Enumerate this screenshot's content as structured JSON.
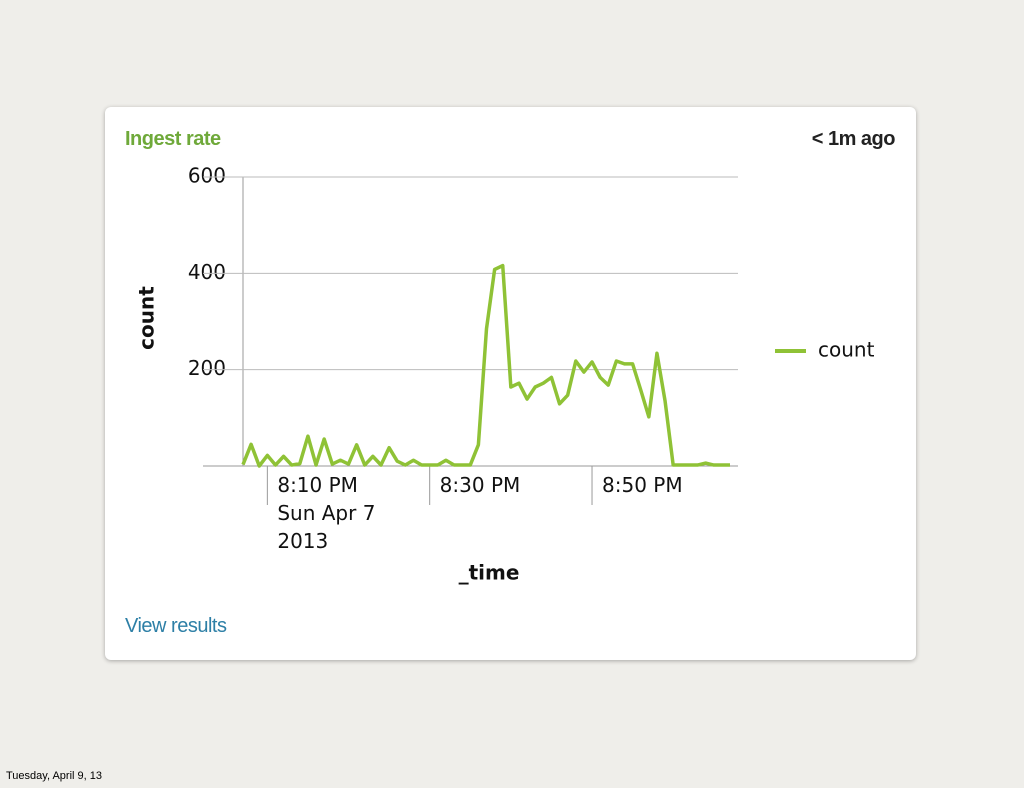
{
  "panel": {
    "title": "Ingest rate",
    "updated": "< 1m ago",
    "link": "View results"
  },
  "footer": "Tuesday, April 9, 13",
  "chart_data": {
    "type": "line",
    "x_label": "_time",
    "y_label": "count",
    "categories": [
      null,
      null,
      null,
      "8:10 PM\nSun Apr 7\n2013",
      null,
      null,
      null,
      null,
      null,
      null,
      null,
      null,
      null,
      null,
      null,
      null,
      null,
      null,
      null,
      null,
      null,
      null,
      null,
      "8:30 PM",
      null,
      null,
      null,
      null,
      null,
      null,
      null,
      null,
      null,
      null,
      null,
      null,
      null,
      null,
      null,
      null,
      null,
      null,
      null,
      "8:50 PM",
      null,
      null,
      null,
      null,
      null,
      null,
      null,
      null,
      null,
      null,
      null,
      null,
      null,
      null,
      null,
      null,
      null
    ],
    "series": [
      {
        "name": "count",
        "color": "#8fc236",
        "values": [
          3,
          45,
          0,
          22,
          2,
          20,
          2,
          5,
          62,
          2,
          56,
          4,
          12,
          4,
          44,
          2,
          20,
          2,
          38,
          10,
          2,
          12,
          2,
          2,
          2,
          12,
          2,
          2,
          2,
          44,
          285,
          408,
          416,
          164,
          172,
          139,
          164,
          172,
          184,
          129,
          147,
          218,
          195,
          216,
          184,
          168,
          218,
          212,
          212,
          158,
          102,
          234,
          135,
          2,
          2,
          2,
          2,
          6,
          2,
          2,
          2
        ]
      }
    ],
    "ylim": [
      0,
      600
    ],
    "yticks": [
      200,
      400,
      600
    ],
    "grid": true,
    "legend": "right"
  }
}
